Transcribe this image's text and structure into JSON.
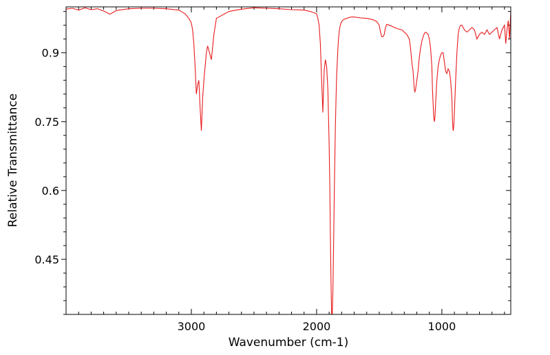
{
  "chart_data": {
    "type": "line",
    "title": "",
    "xlabel": "Wavenumber (cm-1)",
    "ylabel": "Relative Transmittance",
    "xlim": [
      4000,
      450
    ],
    "ylim": [
      0.33,
      1.0
    ],
    "x_ticks": [
      3000,
      2000,
      1000
    ],
    "x_tick_labels": [
      "3000",
      "2000",
      "1000"
    ],
    "y_ticks": [
      0.9,
      0.75,
      0.6,
      0.45
    ],
    "y_tick_labels": [
      "0.9",
      "0.75",
      "0.6",
      "0.45"
    ],
    "grid": false,
    "line_color": "#e8191b",
    "series": [
      {
        "x": [
          4000,
          3950,
          3900,
          3850,
          3800,
          3750,
          3700,
          3650,
          3600,
          3500,
          3400,
          3300,
          3200,
          3100,
          3050,
          3020,
          3000,
          2990,
          2980,
          2970,
          2960,
          2950,
          2940,
          2930,
          2920,
          2910,
          2900,
          2890,
          2880,
          2870,
          2860,
          2850,
          2840,
          2820,
          2800,
          2700,
          2600,
          2500,
          2400,
          2300,
          2200,
          2100,
          2050,
          2000,
          1990,
          1980,
          1970,
          1960,
          1950,
          1940,
          1930,
          1920,
          1910,
          1900,
          1895,
          1890,
          1885,
          1880,
          1875,
          1870,
          1865,
          1860,
          1855,
          1850,
          1845,
          1840,
          1835,
          1830,
          1825,
          1820,
          1815,
          1810,
          1805,
          1800,
          1795,
          1790,
          1785,
          1780,
          1770,
          1760,
          1750,
          1740,
          1720,
          1700,
          1650,
          1600,
          1550,
          1520,
          1500,
          1490,
          1480,
          1470,
          1460,
          1450,
          1440,
          1420,
          1400,
          1380,
          1350,
          1320,
          1300,
          1280,
          1260,
          1250,
          1240,
          1230,
          1225,
          1220,
          1215,
          1210,
          1200,
          1190,
          1180,
          1170,
          1160,
          1150,
          1140,
          1130,
          1120,
          1110,
          1100,
          1090,
          1080,
          1075,
          1070,
          1065,
          1060,
          1055,
          1050,
          1040,
          1030,
          1020,
          1010,
          1000,
          990,
          980,
          970,
          960,
          950,
          940,
          930,
          920,
          915,
          910,
          905,
          900,
          890,
          880,
          870,
          860,
          850,
          840,
          830,
          820,
          800,
          780,
          760,
          740,
          720,
          700,
          680,
          660,
          640,
          620,
          600,
          580,
          560,
          540,
          520,
          500,
          490,
          480,
          470,
          460,
          450
        ],
        "y": [
          0.995,
          0.997,
          0.993,
          0.998,
          0.994,
          0.996,
          0.991,
          0.984,
          0.992,
          0.996,
          0.997,
          0.997,
          0.996,
          0.993,
          0.985,
          0.975,
          0.965,
          0.95,
          0.92,
          0.87,
          0.81,
          0.83,
          0.84,
          0.78,
          0.73,
          0.8,
          0.84,
          0.87,
          0.9,
          0.915,
          0.905,
          0.895,
          0.885,
          0.94,
          0.975,
          0.99,
          0.995,
          0.998,
          0.997,
          0.996,
          0.994,
          0.993,
          0.99,
          0.985,
          0.975,
          0.96,
          0.92,
          0.84,
          0.77,
          0.86,
          0.885,
          0.87,
          0.82,
          0.7,
          0.62,
          0.5,
          0.4,
          0.33,
          0.33,
          0.38,
          0.47,
          0.57,
          0.66,
          0.74,
          0.8,
          0.85,
          0.88,
          0.91,
          0.93,
          0.945,
          0.955,
          0.96,
          0.965,
          0.968,
          0.97,
          0.971,
          0.972,
          0.973,
          0.974,
          0.975,
          0.976,
          0.977,
          0.978,
          0.978,
          0.976,
          0.975,
          0.972,
          0.968,
          0.96,
          0.945,
          0.935,
          0.935,
          0.94,
          0.955,
          0.962,
          0.96,
          0.958,
          0.955,
          0.952,
          0.95,
          0.945,
          0.94,
          0.93,
          0.91,
          0.88,
          0.86,
          0.84,
          0.82,
          0.815,
          0.82,
          0.84,
          0.86,
          0.89,
          0.91,
          0.925,
          0.935,
          0.942,
          0.945,
          0.943,
          0.94,
          0.93,
          0.91,
          0.87,
          0.82,
          0.79,
          0.76,
          0.75,
          0.76,
          0.79,
          0.84,
          0.87,
          0.885,
          0.895,
          0.9,
          0.9,
          0.88,
          0.86,
          0.855,
          0.865,
          0.86,
          0.84,
          0.8,
          0.75,
          0.73,
          0.74,
          0.77,
          0.84,
          0.9,
          0.94,
          0.955,
          0.96,
          0.96,
          0.955,
          0.95,
          0.945,
          0.95,
          0.955,
          0.95,
          0.93,
          0.94,
          0.945,
          0.94,
          0.95,
          0.94,
          0.945,
          0.95,
          0.955,
          0.93,
          0.95,
          0.96,
          0.92,
          0.95,
          0.97,
          0.93,
          0.99
        ]
      }
    ]
  }
}
